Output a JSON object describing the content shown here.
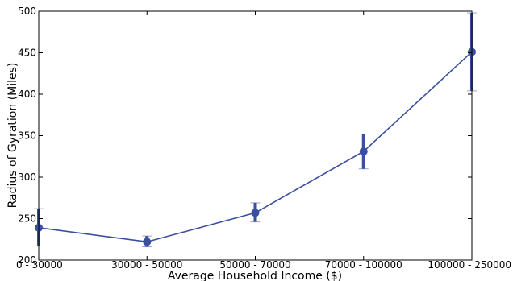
{
  "chart_data": {
    "type": "line",
    "title": "",
    "xlabel": "Average Household Income ($)",
    "ylabel": "Radius of Gyration (Miles)",
    "categories": [
      "0 - 30000",
      "30000 - 50000",
      "50000 - 70000",
      "70000 - 100000",
      "100000 - 250000"
    ],
    "series": [
      {
        "values": [
          239,
          222,
          257,
          331,
          451
        ],
        "error_low": [
          217,
          216,
          246,
          310,
          404
        ],
        "error_high": [
          262,
          229,
          269,
          352,
          498
        ]
      }
    ],
    "ylim": [
      200,
      500
    ],
    "yticks": [
      200,
      250,
      300,
      350,
      400,
      450,
      500
    ],
    "grid": false,
    "colors": {
      "line": "#3a4fa0",
      "errorbar": "#3a4fa0",
      "cap": "#9aa3cf",
      "axis": "#000000"
    }
  }
}
